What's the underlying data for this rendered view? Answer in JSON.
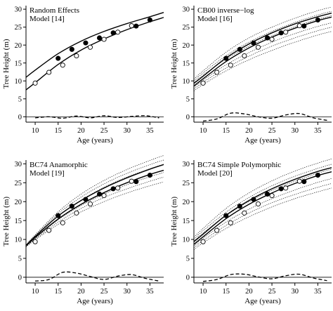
{
  "chart_data": [
    {
      "type": "line",
      "title": "Random Effects",
      "subtitle": "Model [14]",
      "xlabel": "Age (years)",
      "ylabel": "Tree Height (m)",
      "xlim": [
        8,
        38
      ],
      "ylim": [
        -1.5,
        31
      ],
      "xticks": [
        10,
        15,
        20,
        25,
        30,
        35
      ],
      "yticks": [
        0,
        5,
        10,
        15,
        20,
        25,
        30
      ],
      "series": [
        {
          "style": "filled-points",
          "x": [
            15,
            18,
            21,
            24,
            27,
            32,
            35
          ],
          "y": [
            16.3,
            18.8,
            20.6,
            22.0,
            23.4,
            25.3,
            27.0
          ]
        },
        {
          "style": "open-points",
          "x": [
            10,
            13,
            16,
            19,
            22,
            25,
            28,
            31
          ],
          "y": [
            9.4,
            12.4,
            14.4,
            17.0,
            19.4,
            21.6,
            23.6,
            25.4
          ]
        },
        {
          "style": "upper-curve",
          "x": [
            8,
            10,
            15,
            20,
            25,
            30,
            35,
            38
          ],
          "y": [
            11.0,
            13.0,
            17.6,
            21.1,
            23.8,
            26.0,
            27.9,
            29.1
          ]
        },
        {
          "style": "lower-curve",
          "x": [
            8,
            10,
            15,
            20,
            25,
            30,
            35,
            38
          ],
          "y": [
            7.5,
            9.5,
            14.6,
            18.6,
            21.7,
            24.3,
            26.5,
            27.7
          ]
        },
        {
          "style": "residual-dashed",
          "x": [
            10,
            13,
            16,
            19,
            22,
            25,
            28,
            31,
            34,
            37
          ],
          "y": [
            -0.3,
            0.0,
            -0.4,
            0.2,
            -0.3,
            0.3,
            -0.2,
            0.1,
            0.3,
            -0.3
          ]
        }
      ]
    },
    {
      "type": "line",
      "title": "CB00 inverse−log",
      "subtitle": "Model [16]",
      "xlabel": "Age (years)",
      "ylabel": "Tree Height (m)",
      "xlim": [
        8,
        38
      ],
      "ylim": [
        -1.5,
        31
      ],
      "xticks": [
        10,
        15,
        20,
        25,
        30,
        35
      ],
      "yticks": [
        0,
        5,
        10,
        15,
        20,
        25,
        30
      ],
      "series": [
        {
          "style": "filled-points",
          "x": [
            15,
            18,
            21,
            24,
            27,
            32,
            35
          ],
          "y": [
            16.3,
            18.8,
            20.6,
            22.0,
            23.4,
            25.3,
            27.0
          ]
        },
        {
          "style": "open-points",
          "x": [
            10,
            13,
            16,
            19,
            22,
            25,
            28,
            31
          ],
          "y": [
            9.4,
            12.4,
            14.4,
            17.0,
            19.4,
            21.6,
            23.6,
            25.4
          ]
        },
        {
          "style": "dotted-band",
          "x": [
            8,
            10,
            15,
            20,
            25,
            30,
            35,
            38
          ],
          "y": [
            10.5,
            12.8,
            18.0,
            22.0,
            25.0,
            27.5,
            29.6,
            30.6
          ]
        },
        {
          "style": "dotted-band",
          "x": [
            8,
            10,
            15,
            20,
            25,
            30,
            35,
            38
          ],
          "y": [
            10.0,
            12.2,
            17.0,
            20.8,
            23.8,
            26.3,
            28.4,
            29.4
          ]
        },
        {
          "style": "dotted-band",
          "x": [
            8,
            10,
            15,
            20,
            25,
            30,
            35,
            38
          ],
          "y": [
            9.5,
            11.6,
            16.1,
            19.7,
            22.6,
            25.1,
            27.2,
            28.2
          ]
        },
        {
          "style": "dotted-band",
          "x": [
            8,
            10,
            15,
            20,
            25,
            30,
            35,
            38
          ],
          "y": [
            8.2,
            10.2,
            14.5,
            17.9,
            20.8,
            23.2,
            25.2,
            26.2
          ]
        },
        {
          "style": "dotted-band",
          "x": [
            8,
            10,
            15,
            20,
            25,
            30,
            35,
            38
          ],
          "y": [
            7.7,
            9.6,
            13.6,
            16.9,
            19.7,
            22.0,
            24.0,
            25.0
          ]
        },
        {
          "style": "dotted-band",
          "x": [
            8,
            10,
            15,
            20,
            25,
            30,
            35,
            38
          ],
          "y": [
            7.2,
            9.0,
            12.8,
            15.9,
            18.5,
            20.8,
            22.8,
            23.8
          ]
        },
        {
          "style": "upper-curve",
          "x": [
            8,
            10,
            15,
            20,
            25,
            30,
            35,
            38
          ],
          "y": [
            9.3,
            11.3,
            16.4,
            20.3,
            23.4,
            25.9,
            27.9,
            28.9
          ]
        },
        {
          "style": "lower-curve",
          "x": [
            8,
            10,
            15,
            20,
            25,
            30,
            35,
            38
          ],
          "y": [
            8.6,
            10.6,
            15.4,
            19.2,
            22.2,
            24.7,
            26.8,
            27.8
          ]
        },
        {
          "style": "residual-dashed",
          "x": [
            10,
            13,
            16,
            19,
            22,
            25,
            28,
            31,
            34,
            37
          ],
          "y": [
            -1.2,
            -0.6,
            1.0,
            0.8,
            0.0,
            -0.4,
            0.5,
            0.9,
            -0.3,
            -1.0
          ]
        }
      ]
    },
    {
      "type": "line",
      "title": "BC74 Anamorphic",
      "subtitle": "Model [19]",
      "xlabel": "Age (years)",
      "ylabel": "Tree Height (m)",
      "xlim": [
        8,
        38
      ],
      "ylim": [
        -1.5,
        31
      ],
      "xticks": [
        10,
        15,
        20,
        25,
        30,
        35
      ],
      "yticks": [
        0,
        5,
        10,
        15,
        20,
        25,
        30
      ],
      "series": [
        {
          "style": "filled-points",
          "x": [
            15,
            18,
            21,
            24,
            27,
            32,
            35
          ],
          "y": [
            16.3,
            18.8,
            20.6,
            22.0,
            23.4,
            25.3,
            27.0
          ]
        },
        {
          "style": "open-points",
          "x": [
            10,
            13,
            16,
            19,
            22,
            25,
            28,
            31
          ],
          "y": [
            9.4,
            12.4,
            14.4,
            17.0,
            19.4,
            21.6,
            23.6,
            25.4
          ]
        },
        {
          "style": "dotted-band",
          "x": [
            8,
            10,
            15,
            20,
            25,
            30,
            35,
            38
          ],
          "y": [
            8.6,
            11.2,
            17.3,
            22.0,
            25.6,
            28.5,
            30.9,
            32.2
          ]
        },
        {
          "style": "dotted-band",
          "x": [
            8,
            10,
            15,
            20,
            25,
            30,
            35,
            38
          ],
          "y": [
            8.5,
            11.0,
            16.8,
            21.2,
            24.7,
            27.5,
            29.8,
            31.0
          ]
        },
        {
          "style": "dotted-band",
          "x": [
            8,
            10,
            15,
            20,
            25,
            30,
            35,
            38
          ],
          "y": [
            8.4,
            10.8,
            16.2,
            20.4,
            23.8,
            26.5,
            28.7,
            29.9
          ]
        },
        {
          "style": "dotted-band",
          "x": [
            8,
            10,
            15,
            20,
            25,
            30,
            35,
            38
          ],
          "y": [
            8.2,
            10.3,
            15.2,
            19.0,
            22.0,
            24.5,
            26.6,
            27.7
          ]
        },
        {
          "style": "dotted-band",
          "x": [
            8,
            10,
            15,
            20,
            25,
            30,
            35,
            38
          ],
          "y": [
            8.1,
            10.1,
            14.6,
            18.2,
            21.1,
            23.4,
            25.4,
            26.5
          ]
        },
        {
          "style": "dotted-band",
          "x": [
            8,
            10,
            15,
            20,
            25,
            30,
            35,
            38
          ],
          "y": [
            8.0,
            9.9,
            14.0,
            17.3,
            20.0,
            22.3,
            24.2,
            25.2
          ]
        },
        {
          "style": "upper-curve",
          "x": [
            8,
            10,
            15,
            20,
            25,
            30,
            35,
            38
          ],
          "y": [
            8.4,
            10.8,
            16.2,
            20.3,
            23.6,
            26.3,
            28.6,
            29.8
          ]
        },
        {
          "style": "lower-curve",
          "x": [
            8,
            10,
            15,
            20,
            25,
            30,
            35,
            38
          ],
          "y": [
            8.3,
            10.5,
            15.4,
            19.3,
            22.4,
            25.0,
            27.2,
            28.3
          ]
        },
        {
          "style": "residual-dashed",
          "x": [
            10,
            13,
            16,
            19,
            22,
            25,
            28,
            31,
            34,
            37
          ],
          "y": [
            -1.0,
            -0.6,
            1.3,
            1.1,
            0.2,
            -0.6,
            0.3,
            0.7,
            -0.3,
            -1.0
          ]
        }
      ]
    },
    {
      "type": "line",
      "title": "BC74 Simple Polymorphic",
      "subtitle": "Model [20]",
      "xlabel": "Age (years)",
      "ylabel": "Tree Height (m)",
      "xlim": [
        8,
        38
      ],
      "ylim": [
        -1.5,
        31
      ],
      "xticks": [
        10,
        15,
        20,
        25,
        30,
        35
      ],
      "yticks": [
        0,
        5,
        10,
        15,
        20,
        25,
        30
      ],
      "series": [
        {
          "style": "filled-points",
          "x": [
            15,
            18,
            21,
            24,
            27,
            32,
            35
          ],
          "y": [
            16.3,
            18.8,
            20.6,
            22.0,
            23.4,
            25.3,
            27.0
          ]
        },
        {
          "style": "open-points",
          "x": [
            10,
            13,
            16,
            19,
            22,
            25,
            28,
            31
          ],
          "y": [
            9.4,
            12.4,
            14.4,
            17.0,
            19.4,
            21.6,
            23.6,
            25.4
          ]
        },
        {
          "style": "dotted-band",
          "x": [
            8,
            10,
            15,
            20,
            25,
            30,
            35,
            38
          ],
          "y": [
            10.6,
            12.9,
            18.2,
            22.3,
            25.5,
            28.1,
            30.2,
            31.3
          ]
        },
        {
          "style": "dotted-band",
          "x": [
            8,
            10,
            15,
            20,
            25,
            30,
            35,
            38
          ],
          "y": [
            10.1,
            12.3,
            17.2,
            21.1,
            24.2,
            26.7,
            28.8,
            29.9
          ]
        },
        {
          "style": "dotted-band",
          "x": [
            8,
            10,
            15,
            20,
            25,
            30,
            35,
            38
          ],
          "y": [
            9.6,
            11.7,
            16.3,
            20.0,
            23.0,
            25.4,
            27.5,
            28.6
          ]
        },
        {
          "style": "dotted-band",
          "x": [
            8,
            10,
            15,
            20,
            25,
            30,
            35,
            38
          ],
          "y": [
            8.3,
            10.3,
            14.6,
            18.0,
            20.8,
            23.1,
            25.1,
            26.1
          ]
        },
        {
          "style": "dotted-band",
          "x": [
            8,
            10,
            15,
            20,
            25,
            30,
            35,
            38
          ],
          "y": [
            7.8,
            9.7,
            13.7,
            17.0,
            19.7,
            21.9,
            23.8,
            24.8
          ]
        },
        {
          "style": "dotted-band",
          "x": [
            8,
            10,
            15,
            20,
            25,
            30,
            35,
            38
          ],
          "y": [
            7.3,
            9.1,
            12.9,
            16.0,
            18.6,
            20.8,
            22.6,
            23.6
          ]
        },
        {
          "style": "upper-curve",
          "x": [
            8,
            10,
            15,
            20,
            25,
            30,
            35,
            38
          ],
          "y": [
            9.4,
            11.4,
            16.4,
            20.3,
            23.4,
            25.9,
            28.0,
            29.0
          ]
        },
        {
          "style": "lower-curve",
          "x": [
            8,
            10,
            15,
            20,
            25,
            30,
            35,
            38
          ],
          "y": [
            8.7,
            10.7,
            15.5,
            19.3,
            22.3,
            24.8,
            26.9,
            27.9
          ]
        },
        {
          "style": "residual-dashed",
          "x": [
            10,
            13,
            16,
            19,
            22,
            25,
            28,
            31,
            34,
            37
          ],
          "y": [
            -1.1,
            -0.6,
            0.7,
            0.8,
            0.1,
            -0.4,
            0.4,
            0.8,
            -0.2,
            -0.9
          ]
        }
      ]
    }
  ]
}
